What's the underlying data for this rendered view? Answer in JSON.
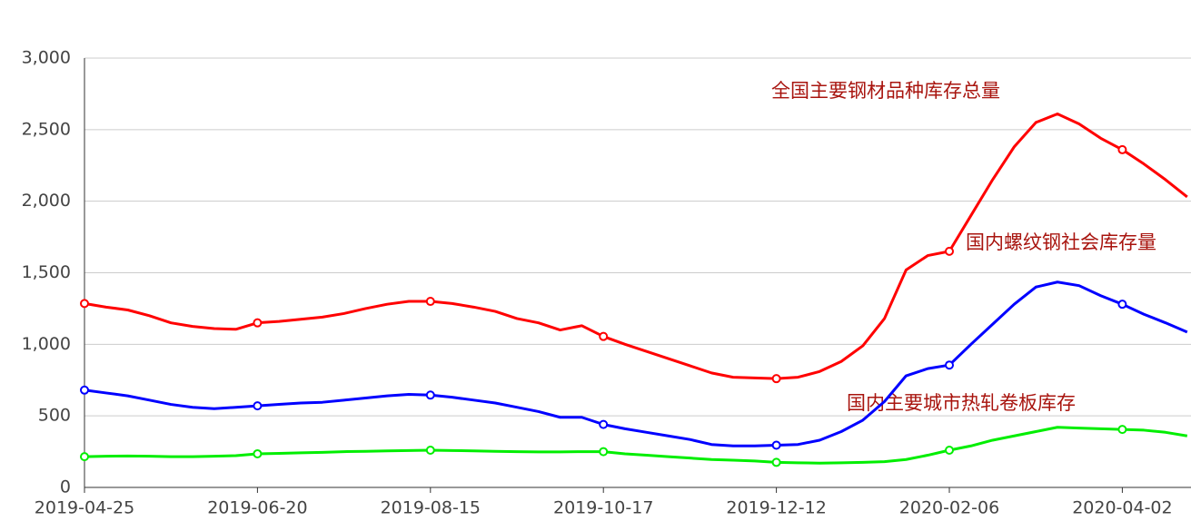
{
  "chart_data": {
    "type": "line",
    "categories": [
      "2019-04-25",
      null,
      null,
      null,
      null,
      null,
      null,
      null,
      "2019-06-20",
      null,
      null,
      null,
      null,
      null,
      null,
      null,
      "2019-08-15",
      null,
      null,
      null,
      null,
      null,
      null,
      null,
      "2019-10-17",
      null,
      null,
      null,
      null,
      null,
      null,
      null,
      "2019-12-12",
      null,
      null,
      null,
      null,
      null,
      null,
      null,
      "2020-02-06",
      null,
      null,
      null,
      null,
      null,
      null,
      null,
      "2020-04-02",
      null,
      null,
      null
    ],
    "series": [
      {
        "color": "#ff0000",
        "values": [
          1285,
          1260,
          1240,
          1200,
          1150,
          1125,
          1110,
          1105,
          1150,
          1160,
          1175,
          1190,
          1215,
          1250,
          1280,
          1300,
          1300,
          1285,
          1260,
          1230,
          1180,
          1150,
          1100,
          1130,
          1055,
          1000,
          950,
          900,
          850,
          800,
          770,
          765,
          760,
          770,
          810,
          880,
          990,
          1180,
          1520,
          1620,
          1650,
          1900,
          2150,
          2380,
          2550,
          2610,
          2540,
          2440,
          2360,
          2260,
          2150,
          2030
        ]
      },
      {
        "color": "#0000ff",
        "values": [
          680,
          660,
          640,
          610,
          580,
          560,
          550,
          560,
          570,
          580,
          590,
          595,
          610,
          625,
          640,
          650,
          645,
          630,
          610,
          590,
          560,
          530,
          490,
          490,
          440,
          410,
          385,
          360,
          335,
          300,
          290,
          290,
          295,
          300,
          330,
          390,
          470,
          600,
          780,
          830,
          855,
          1000,
          1140,
          1280,
          1400,
          1435,
          1410,
          1340,
          1280,
          1210,
          1150,
          1085
        ]
      },
      {
        "color": "#00ee00",
        "values": [
          215,
          218,
          220,
          218,
          215,
          215,
          218,
          222,
          235,
          238,
          242,
          245,
          250,
          252,
          255,
          258,
          260,
          258,
          255,
          252,
          250,
          248,
          248,
          250,
          250,
          235,
          225,
          215,
          205,
          195,
          190,
          185,
          175,
          172,
          170,
          172,
          175,
          180,
          195,
          225,
          260,
          290,
          330,
          360,
          390,
          420,
          415,
          410,
          405,
          400,
          385,
          360
        ]
      }
    ],
    "annotations": [
      "全国主要钢材品种库存总量",
      "国内螺纹钢社会库存量",
      "国内主要城市热轧卷板库存"
    ],
    "ylim": [
      0,
      3000
    ],
    "yticks": [
      0,
      500,
      {
        "value": 1000,
        "label": "1,000"
      },
      {
        "value": 1500,
        "label": "1,500"
      },
      {
        "value": 2000,
        "label": "2,000"
      },
      {
        "value": 2500,
        "label": "2,500"
      },
      {
        "value": 3000,
        "label": "3,000"
      }
    ],
    "grid": true
  }
}
